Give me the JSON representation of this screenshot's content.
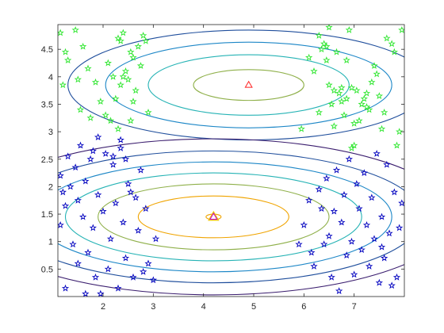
{
  "chart_data": {
    "type": "scatter",
    "title": "",
    "xlabel": "",
    "ylabel": "",
    "xlim": [
      1.1,
      8.0
    ],
    "ylim": [
      0.0,
      4.95
    ],
    "x_ticks": [
      2,
      3,
      4,
      5,
      6,
      7
    ],
    "x_tick_labels": [
      "2",
      "3",
      "4",
      "5",
      "6",
      "7"
    ],
    "y_ticks": [
      0.5,
      1,
      1.5,
      2,
      2.5,
      3,
      3.5,
      4,
      4.5
    ],
    "y_tick_labels": [
      "0.5",
      "1",
      "1.5",
      "2",
      "2.5",
      "3",
      "3.5",
      "4",
      "4.5"
    ],
    "grid": false,
    "legend": "none",
    "colors": {
      "cluster_a": "#2ee62e",
      "cluster_b": "#0000bf",
      "center_a": "#ff2222",
      "center_b": "#c800c8",
      "center_b_halo": "#f0c400",
      "contour_levels": [
        "#3a1d6e",
        "#1f4e9c",
        "#1d87c7",
        "#26b3b5",
        "#8fb04a",
        "#f0a400"
      ]
    },
    "centers": [
      {
        "x": 4.9,
        "y": 3.85
      },
      {
        "x": 4.2,
        "y": 1.45
      }
    ],
    "contours": {
      "upper": [
        {
          "cx": 4.9,
          "cy": 3.85,
          "rx": 1.1,
          "ry": 0.28
        },
        {
          "cx": 4.9,
          "cy": 3.85,
          "rx": 2.0,
          "ry": 0.55
        },
        {
          "cx": 4.9,
          "cy": 3.85,
          "rx": 2.85,
          "ry": 0.78
        },
        {
          "cx": 4.9,
          "cy": 3.85,
          "rx": 3.6,
          "ry": 1.0
        }
      ],
      "lower": [
        {
          "cx": 4.2,
          "cy": 1.45,
          "rx": 0.15,
          "ry": 0.05
        },
        {
          "cx": 4.2,
          "cy": 1.45,
          "rx": 1.5,
          "ry": 0.38
        },
        {
          "cx": 4.2,
          "cy": 1.45,
          "rx": 2.3,
          "ry": 0.6
        },
        {
          "cx": 4.2,
          "cy": 1.45,
          "rx": 2.95,
          "ry": 0.8
        },
        {
          "cx": 4.2,
          "cy": 1.45,
          "rx": 3.55,
          "ry": 1.0
        },
        {
          "cx": 4.2,
          "cy": 1.45,
          "rx": 4.15,
          "ry": 1.2
        },
        {
          "cx": 4.2,
          "cy": 1.45,
          "rx": 4.8,
          "ry": 1.42
        }
      ]
    },
    "series": [
      {
        "values": [
          [
            1.15,
            4.8
          ],
          [
            1.25,
            4.45
          ],
          [
            1.3,
            4.3
          ],
          [
            1.45,
            4.85
          ],
          [
            1.2,
            3.85
          ],
          [
            1.5,
            3.95
          ],
          [
            1.55,
            3.4
          ],
          [
            1.6,
            4.55
          ],
          [
            1.7,
            4.15
          ],
          [
            1.85,
            3.9
          ],
          [
            1.95,
            3.55
          ],
          [
            2.05,
            3.3
          ],
          [
            2.1,
            4.25
          ],
          [
            2.2,
            4.0
          ],
          [
            2.25,
            3.6
          ],
          [
            2.3,
            4.7
          ],
          [
            2.35,
            4.65
          ],
          [
            2.35,
            3.85
          ],
          [
            2.4,
            4.8
          ],
          [
            2.4,
            4.0
          ],
          [
            2.45,
            4.1
          ],
          [
            2.5,
            3.95
          ],
          [
            2.55,
            3.2
          ],
          [
            2.6,
            3.55
          ],
          [
            2.65,
            3.75
          ],
          [
            2.7,
            4.55
          ],
          [
            2.8,
            4.75
          ],
          [
            2.85,
            4.65
          ],
          [
            2.9,
            3.35
          ],
          [
            2.3,
            3.05
          ],
          [
            2.15,
            3.2
          ],
          [
            1.75,
            3.25
          ],
          [
            6.1,
            4.35
          ],
          [
            6.2,
            4.1
          ],
          [
            6.3,
            4.75
          ],
          [
            6.35,
            4.5
          ],
          [
            6.4,
            4.6
          ],
          [
            6.45,
            4.3
          ],
          [
            6.5,
            4.9
          ],
          [
            6.55,
            3.5
          ],
          [
            6.6,
            3.1
          ],
          [
            6.65,
            4.45
          ],
          [
            6.7,
            3.7
          ],
          [
            6.75,
            3.55
          ],
          [
            6.8,
            3.3
          ],
          [
            6.85,
            3.6
          ],
          [
            6.9,
            4.85
          ],
          [
            6.95,
            3.8
          ],
          [
            7.0,
            3.15
          ],
          [
            7.05,
            3.75
          ],
          [
            7.1,
            3.2
          ],
          [
            7.15,
            3.5
          ],
          [
            7.2,
            3.6
          ],
          [
            7.25,
            3.45
          ],
          [
            7.3,
            3.4
          ],
          [
            7.35,
            3.9
          ],
          [
            7.4,
            4.2
          ],
          [
            7.45,
            4.05
          ],
          [
            7.5,
            3.65
          ],
          [
            7.55,
            3.05
          ],
          [
            7.6,
            3.35
          ],
          [
            7.65,
            4.7
          ],
          [
            7.75,
            4.6
          ],
          [
            7.8,
            4.45
          ],
          [
            7.85,
            2.75
          ],
          [
            7.9,
            3.0
          ],
          [
            7.95,
            4.85
          ],
          [
            7.0,
            2.75
          ],
          [
            6.95,
            2.7
          ],
          [
            6.5,
            3.85
          ],
          [
            6.85,
            4.3
          ],
          [
            5.95,
            3.05
          ],
          [
            6.3,
            3.35
          ],
          [
            6.75,
            3.8
          ],
          [
            2.6,
            4.35
          ],
          [
            2.75,
            4.2
          ],
          [
            2.55,
            4.45
          ],
          [
            6.45,
            4.55
          ],
          [
            7.25,
            3.7
          ],
          [
            6.6,
            3.75
          ]
        ]
      },
      {
        "values": [
          [
            1.15,
            2.2
          ],
          [
            1.15,
            1.3
          ],
          [
            1.2,
            1.9
          ],
          [
            1.25,
            1.65
          ],
          [
            1.3,
            2.55
          ],
          [
            1.35,
            2.0
          ],
          [
            1.4,
            0.95
          ],
          [
            1.45,
            2.35
          ],
          [
            1.5,
            1.75
          ],
          [
            1.5,
            0.6
          ],
          [
            1.55,
            2.75
          ],
          [
            1.6,
            1.45
          ],
          [
            1.65,
            2.1
          ],
          [
            1.7,
            0.8
          ],
          [
            1.75,
            2.5
          ],
          [
            1.8,
            1.25
          ],
          [
            1.85,
            0.35
          ],
          [
            1.9,
            2.9
          ],
          [
            1.9,
            1.85
          ],
          [
            1.95,
            0.05
          ],
          [
            2.0,
            1.55
          ],
          [
            2.05,
            2.6
          ],
          [
            2.1,
            0.5
          ],
          [
            2.15,
            1.05
          ],
          [
            2.2,
            2.4
          ],
          [
            2.25,
            1.7
          ],
          [
            2.3,
            0.15
          ],
          [
            2.35,
            2.85
          ],
          [
            2.4,
            1.35
          ],
          [
            2.45,
            0.7
          ],
          [
            2.5,
            2.05
          ],
          [
            2.55,
            1.9
          ],
          [
            2.6,
            0.35
          ],
          [
            2.65,
            1.8
          ],
          [
            2.7,
            1.2
          ],
          [
            2.75,
            2.3
          ],
          [
            2.8,
            0.45
          ],
          [
            2.85,
            1.6
          ],
          [
            2.9,
            0.6
          ],
          [
            3.0,
            0.3
          ],
          [
            3.05,
            1.05
          ],
          [
            1.25,
            0.15
          ],
          [
            1.65,
            0.05
          ],
          [
            2.35,
            2.7
          ],
          [
            2.2,
            2.55
          ],
          [
            2.45,
            2.5
          ],
          [
            1.8,
            2.65
          ],
          [
            6.2,
            0.55
          ],
          [
            6.3,
            1.95
          ],
          [
            6.35,
            1.6
          ],
          [
            6.4,
            0.95
          ],
          [
            6.45,
            2.15
          ],
          [
            6.5,
            1.1
          ],
          [
            6.55,
            0.35
          ],
          [
            6.6,
            1.55
          ],
          [
            6.65,
            2.3
          ],
          [
            6.7,
            0.1
          ],
          [
            6.75,
            1.35
          ],
          [
            6.8,
            1.85
          ],
          [
            6.85,
            0.75
          ],
          [
            6.9,
            2.5
          ],
          [
            6.95,
            1.0
          ],
          [
            7.0,
            0.4
          ],
          [
            7.05,
            2.05
          ],
          [
            7.1,
            1.6
          ],
          [
            7.15,
            0.85
          ],
          [
            7.2,
            2.25
          ],
          [
            7.25,
            1.3
          ],
          [
            7.3,
            0.55
          ],
          [
            7.35,
            1.8
          ],
          [
            7.4,
            1.05
          ],
          [
            7.45,
            2.6
          ],
          [
            7.5,
            0.25
          ],
          [
            7.55,
            1.45
          ],
          [
            7.6,
            0.7
          ],
          [
            7.65,
            2.4
          ],
          [
            7.7,
            1.15
          ],
          [
            7.75,
            0.2
          ],
          [
            7.8,
            1.9
          ],
          [
            7.9,
            1.25
          ],
          [
            7.95,
            1.7
          ],
          [
            7.85,
            0.35
          ],
          [
            6.1,
            1.75
          ],
          [
            6.15,
            0.8
          ],
          [
            6.0,
            1.3
          ],
          [
            5.9,
            0.95
          ],
          [
            7.55,
            0.9
          ]
        ]
      }
    ]
  }
}
